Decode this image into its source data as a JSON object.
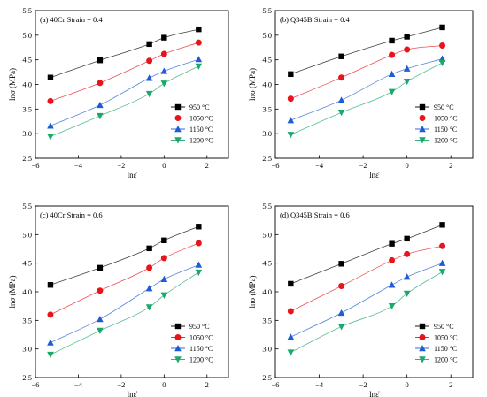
{
  "chart_data": [
    {
      "type": "scatter",
      "title": "(a) 40Cr Strain = 0.4",
      "xlabel": "lnε̇",
      "ylabel": "lnσ (MPa)",
      "xlim": [
        -6,
        3
      ],
      "ylim": [
        2.5,
        5.5
      ],
      "xticks": [
        "−6",
        "−4",
        "−2",
        "0",
        "2"
      ],
      "yticks": [
        "2.5",
        "3.0",
        "3.5",
        "4.0",
        "4.5",
        "5.0",
        "5.5"
      ],
      "x": [
        -5.3,
        -2.99,
        -0.69,
        0,
        1.61
      ],
      "legend_position": "bottom-right",
      "series": [
        {
          "name": "950 °C",
          "marker": "square",
          "color": "#000000",
          "values": [
            4.14,
            4.49,
            4.82,
            4.95,
            5.12
          ]
        },
        {
          "name": "1050 °C",
          "marker": "circle",
          "color": "#e8141c",
          "values": [
            3.66,
            4.03,
            4.48,
            4.62,
            4.85
          ]
        },
        {
          "name": "1150 °C",
          "marker": "triangle-up",
          "color": "#1e5bd6",
          "values": [
            3.16,
            3.58,
            4.13,
            4.27,
            4.51
          ]
        },
        {
          "name": "1200 °C",
          "marker": "triangle-down",
          "color": "#1ba86c",
          "values": [
            2.94,
            3.36,
            3.81,
            4.02,
            4.37
          ]
        }
      ]
    },
    {
      "type": "scatter",
      "title": "(b) Q345B Strain = 0.4",
      "xlabel": "lnε̇",
      "ylabel": "lnσ (MPa)",
      "xlim": [
        -6,
        3
      ],
      "ylim": [
        2.5,
        5.5
      ],
      "xticks": [
        "−6",
        "−4",
        "−2",
        "0",
        "2"
      ],
      "yticks": [
        "2.5",
        "3.0",
        "3.5",
        "4.0",
        "4.5",
        "5.0",
        "5.5"
      ],
      "x": [
        -5.3,
        -2.99,
        -0.69,
        0,
        1.61
      ],
      "legend_position": "bottom-right",
      "series": [
        {
          "name": "950 °C",
          "marker": "square",
          "color": "#000000",
          "values": [
            4.21,
            4.57,
            4.89,
            4.97,
            5.16
          ]
        },
        {
          "name": "1050 °C",
          "marker": "circle",
          "color": "#e8141c",
          "values": [
            3.71,
            4.14,
            4.6,
            4.71,
            4.79
          ]
        },
        {
          "name": "1150 °C",
          "marker": "triangle-up",
          "color": "#1e5bd6",
          "values": [
            3.27,
            3.68,
            4.21,
            4.32,
            4.52
          ]
        },
        {
          "name": "1200 °C",
          "marker": "triangle-down",
          "color": "#1ba86c",
          "values": [
            2.98,
            3.43,
            3.85,
            4.06,
            4.44
          ]
        }
      ]
    },
    {
      "type": "scatter",
      "title": "(c) 40Cr Strain = 0.6",
      "xlabel": "lnε̇",
      "ylabel": "lnσ (MPa)",
      "xlim": [
        -6,
        3
      ],
      "ylim": [
        2.5,
        5.5
      ],
      "xticks": [
        "−6",
        "−4",
        "−2",
        "0",
        "2"
      ],
      "yticks": [
        "2.5",
        "3.0",
        "3.5",
        "4.0",
        "4.5",
        "5.0",
        "5.5"
      ],
      "x": [
        -5.3,
        -2.99,
        -0.69,
        0,
        1.61
      ],
      "legend_position": "bottom-right",
      "series": [
        {
          "name": "950 °C",
          "marker": "square",
          "color": "#000000",
          "values": [
            4.12,
            4.42,
            4.76,
            4.9,
            5.14
          ]
        },
        {
          "name": "1050 °C",
          "marker": "circle",
          "color": "#e8141c",
          "values": [
            3.6,
            4.02,
            4.42,
            4.59,
            4.85
          ]
        },
        {
          "name": "1150 °C",
          "marker": "triangle-up",
          "color": "#1e5bd6",
          "values": [
            3.11,
            3.52,
            4.06,
            4.22,
            4.47
          ]
        },
        {
          "name": "1200 °C",
          "marker": "triangle-down",
          "color": "#1ba86c",
          "values": [
            2.9,
            3.32,
            3.73,
            3.94,
            4.34
          ]
        }
      ]
    },
    {
      "type": "scatter",
      "title": "(d) Q345B Strain = 0.6",
      "xlabel": "lnε̇",
      "ylabel": "lnσ (MPa)",
      "xlim": [
        -6,
        3
      ],
      "ylim": [
        2.5,
        5.5
      ],
      "xticks": [
        "−6",
        "−4",
        "−2",
        "0",
        "2"
      ],
      "yticks": [
        "2.5",
        "3.0",
        "3.5",
        "4.0",
        "4.5",
        "5.0",
        "5.5"
      ],
      "x": [
        -5.3,
        -2.99,
        -0.69,
        0,
        1.61
      ],
      "legend_position": "bottom-right",
      "series": [
        {
          "name": "950 °C",
          "marker": "square",
          "color": "#000000",
          "values": [
            4.14,
            4.49,
            4.84,
            4.93,
            5.17
          ]
        },
        {
          "name": "1050 °C",
          "marker": "circle",
          "color": "#e8141c",
          "values": [
            3.66,
            4.1,
            4.55,
            4.66,
            4.8
          ]
        },
        {
          "name": "1150 °C",
          "marker": "triangle-up",
          "color": "#1e5bd6",
          "values": [
            3.21,
            3.63,
            4.12,
            4.26,
            4.5
          ]
        },
        {
          "name": "1200 °C",
          "marker": "triangle-down",
          "color": "#1ba86c",
          "values": [
            2.94,
            3.39,
            3.75,
            3.97,
            4.35
          ]
        }
      ]
    }
  ]
}
